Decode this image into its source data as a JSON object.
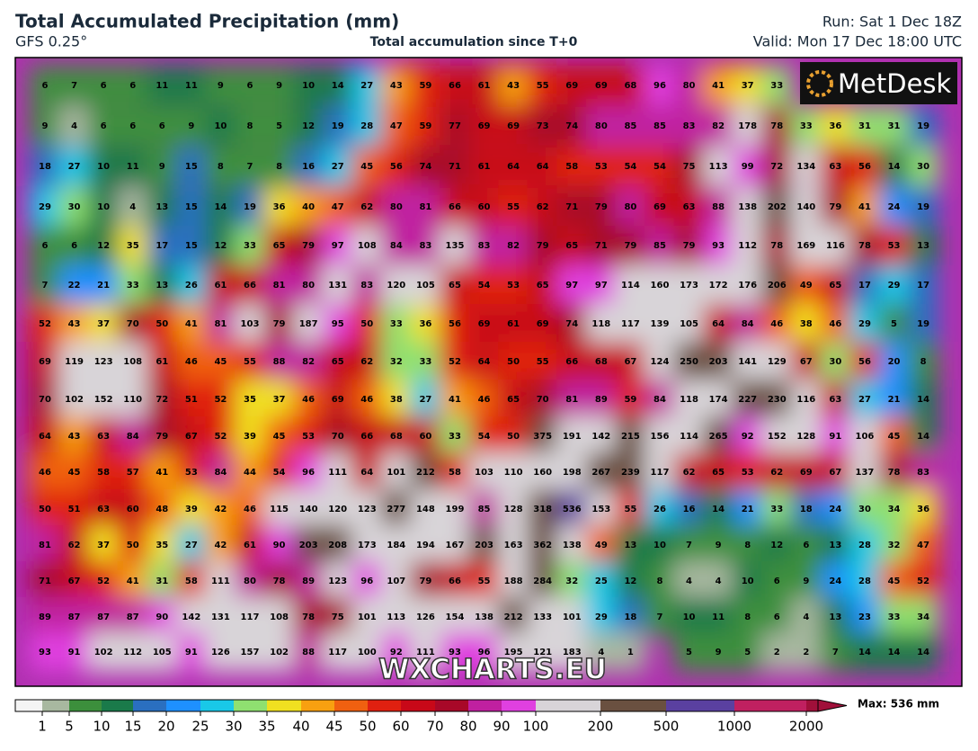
{
  "header": {
    "title": "Total Accumulated Precipitation (mm)",
    "model": "GFS 0.25°",
    "subtitle": "Total accumulation since T+0",
    "run": "Run: Sat 1 Dec 18Z",
    "valid": "Valid: Mon 17 Dec 18:00 UTC"
  },
  "logo": "MetDesk",
  "watermark": "WXCHARTS.EU",
  "grid": {
    "rows": [
      [
        6,
        7,
        6,
        6,
        11,
        11,
        9,
        6,
        9,
        10,
        14,
        27,
        43,
        59,
        66,
        61,
        43,
        55,
        69,
        69,
        68,
        96,
        80,
        41,
        37,
        33,
        null,
        null,
        null,
        null,
        null
      ],
      [
        9,
        4,
        6,
        6,
        6,
        9,
        10,
        8,
        5,
        12,
        19,
        28,
        47,
        59,
        77,
        69,
        69,
        73,
        74,
        80,
        85,
        85,
        83,
        82,
        178,
        78,
        33,
        36,
        31,
        31,
        19
      ],
      [
        18,
        27,
        10,
        11,
        9,
        15,
        8,
        7,
        8,
        16,
        27,
        45,
        56,
        74,
        71,
        61,
        64,
        64,
        58,
        53,
        54,
        54,
        75,
        113,
        99,
        72,
        134,
        63,
        56,
        14,
        30
      ],
      [
        29,
        30,
        10,
        4,
        13,
        15,
        14,
        19,
        36,
        40,
        47,
        62,
        80,
        81,
        66,
        60,
        55,
        62,
        71,
        79,
        80,
        69,
        63,
        88,
        138,
        202,
        140,
        79,
        41,
        24,
        19
      ],
      [
        6,
        6,
        12,
        35,
        17,
        15,
        12,
        33,
        65,
        79,
        97,
        108,
        84,
        83,
        135,
        83,
        82,
        79,
        65,
        71,
        79,
        85,
        79,
        93,
        112,
        78,
        169,
        116,
        78,
        53,
        13
      ],
      [
        7,
        22,
        21,
        33,
        13,
        26,
        61,
        66,
        81,
        80,
        131,
        83,
        120,
        105,
        65,
        54,
        53,
        65,
        97,
        97,
        114,
        160,
        173,
        172,
        176,
        206,
        49,
        65,
        17,
        29,
        17
      ],
      [
        52,
        43,
        37,
        70,
        50,
        41,
        81,
        103,
        79,
        187,
        95,
        50,
        33,
        36,
        56,
        69,
        61,
        69,
        74,
        118,
        117,
        139,
        105,
        64,
        84,
        46,
        38,
        46,
        29,
        5,
        19
      ],
      [
        69,
        119,
        123,
        108,
        61,
        46,
        45,
        55,
        88,
        82,
        65,
        62,
        32,
        33,
        52,
        64,
        50,
        55,
        66,
        68,
        67,
        124,
        250,
        203,
        141,
        129,
        67,
        30,
        56,
        20,
        8
      ],
      [
        70,
        102,
        152,
        110,
        72,
        51,
        52,
        35,
        37,
        46,
        69,
        46,
        38,
        27,
        41,
        46,
        65,
        70,
        81,
        89,
        59,
        84,
        118,
        174,
        227,
        230,
        116,
        63,
        27,
        21,
        14
      ],
      [
        64,
        43,
        63,
        84,
        79,
        67,
        52,
        39,
        45,
        53,
        70,
        66,
        68,
        60,
        33,
        54,
        50,
        375,
        191,
        142,
        215,
        156,
        114,
        265,
        92,
        152,
        128,
        91,
        106,
        45,
        14
      ],
      [
        46,
        45,
        58,
        57,
        41,
        53,
        84,
        44,
        54,
        96,
        111,
        64,
        101,
        212,
        58,
        103,
        110,
        160,
        198,
        267,
        239,
        117,
        62,
        65,
        53,
        62,
        69,
        67,
        137,
        78,
        83
      ],
      [
        50,
        51,
        63,
        60,
        48,
        39,
        42,
        46,
        115,
        140,
        120,
        123,
        277,
        148,
        199,
        85,
        128,
        318,
        536,
        153,
        55,
        26,
        16,
        14,
        21,
        33,
        18,
        24,
        30,
        34,
        36
      ],
      [
        81,
        62,
        37,
        50,
        35,
        27,
        42,
        61,
        90,
        203,
        208,
        173,
        184,
        194,
        167,
        203,
        163,
        362,
        138,
        49,
        13,
        10,
        7,
        9,
        8,
        12,
        6,
        13,
        28,
        32,
        47
      ],
      [
        71,
        67,
        52,
        41,
        31,
        58,
        111,
        80,
        78,
        89,
        123,
        96,
        107,
        79,
        66,
        55,
        188,
        284,
        32,
        25,
        12,
        8,
        4,
        4,
        10,
        6,
        9,
        24,
        28,
        45,
        52
      ],
      [
        89,
        87,
        87,
        87,
        90,
        142,
        131,
        117,
        108,
        78,
        75,
        101,
        113,
        126,
        154,
        138,
        212,
        133,
        101,
        29,
        18,
        7,
        10,
        11,
        8,
        6,
        4,
        13,
        23,
        33,
        34
      ],
      [
        93,
        91,
        102,
        112,
        105,
        91,
        126,
        157,
        102,
        88,
        117,
        100,
        92,
        111,
        93,
        96,
        195,
        121,
        183,
        4,
        1,
        null,
        5,
        9,
        5,
        2,
        2,
        7,
        14,
        14,
        14
      ]
    ]
  },
  "colorbar": {
    "ticks": [
      1,
      5,
      10,
      15,
      20,
      25,
      30,
      35,
      40,
      45,
      50,
      60,
      70,
      80,
      90,
      100,
      200,
      500,
      1000,
      2000
    ],
    "colors": [
      "#f4f4f4",
      "#a8b8a0",
      "#3c8f3c",
      "#1a7a4a",
      "#2a6fc0",
      "#1e90ff",
      "#19c8e8",
      "#8fe070",
      "#f0e020",
      "#f8a010",
      "#f06010",
      "#e02010",
      "#c80818",
      "#a80828",
      "#c020a0",
      "#e040e0",
      "#d8d4d8",
      "#6a5040",
      "#5a40a0",
      "#c02060",
      "#a0103a"
    ],
    "max_label": "Max: 536 mm"
  }
}
